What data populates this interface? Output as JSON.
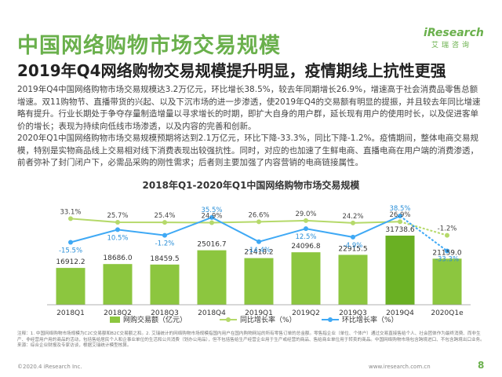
{
  "header": {
    "title": "中国网络购物市场交易规模",
    "subtitle": "2019年Q4网络购物交易规模提升明显，疫情期线上抗性更强",
    "logo_brand": "Research",
    "logo_brand_prefix": "i",
    "logo_cn": "艾瑞咨询"
  },
  "body": {
    "para1": "2019年Q4中国网络购物市场交易规模达3.2万亿元，环比增长38.5%，较去年同期增长26.9%，增速高于社会消费品零售总额增速。双11购物节、直播带货的兴起、以及下沉市场的进一步渗透，使2019年Q4的交易额有明显的提振，并且较去年同比增速略有提升。行业长期处于争夺存量制造增量以寻求增长的时期，即扩大自身的用户群，延长现有用户的使用时长，以及促进客单价的增长；表现为持续向低线市场渗透，以及内容的完善和创新。",
    "para2": "2020年Q1中国网络购物市场交易规模预期将达到2.1万亿元，环比下降-33.3%，同比下降-1.2%。疫情期间，整体电商交易规模，特别是实物商品线上交易相对线下消费表现出较强抗性。同时，对应的也加速了生鲜电商、直播电商在用户端的消费渗透，前者弥补了封门闭户下，必需品采购的刚性需求；后者则主要加强了内容营销的电商链接属性。"
  },
  "chart_data": {
    "type": "bar",
    "title": "2018年Q1-2020年Q1中国网络购物市场交易规模",
    "categories": [
      "2018Q1",
      "2018Q2",
      "2018Q3",
      "2018Q4",
      "2019Q1",
      "2019Q2",
      "2019Q3",
      "2019Q4",
      "2020Q1e"
    ],
    "bar_series": {
      "name": "网购交易额（亿元）",
      "values": [
        16912.2,
        18686.0,
        18459.5,
        25016.7,
        21418.2,
        24096.8,
        22915.5,
        31738.6,
        21159.0
      ],
      "labels": [
        "16912.2",
        "18686.0",
        "18459.5",
        "25016.7",
        "21418.2",
        "24096.8",
        "22915.5",
        "31738.6",
        "21159.0"
      ],
      "color": "#8cc63f",
      "highlight_color": "#6ab023"
    },
    "line_series": [
      {
        "name": "同比增长率（%）",
        "values": [
          33.1,
          25.7,
          25.4,
          24.9,
          26.6,
          29.0,
          24.2,
          26.9,
          -1.2
        ],
        "labels": [
          "33.1%",
          "25.7%",
          "25.4%",
          "24.9%",
          "26.6%",
          "29.0%",
          "24.2%",
          "26.9%",
          "-1.2%"
        ],
        "color": "#b5d96a",
        "label_color": "#444444"
      },
      {
        "name": "环比增长率（%）",
        "values": [
          -15.5,
          10.5,
          -1.2,
          35.5,
          -14.4,
          12.5,
          -4.9,
          38.5,
          -33.3
        ],
        "labels": [
          "-15.5%",
          "10.5%",
          "-1.2%",
          "35.5%",
          "-14.4%",
          "12.5%",
          "-4.9%",
          "38.5%",
          "-33.3%"
        ],
        "color": "#3fa9f5",
        "label_color": "#2a8fd8"
      }
    ],
    "forecast_category_index": 8,
    "legend_placement": "bottom",
    "grid": false
  },
  "notes": {
    "line1": "注释：1. 中国网络购物市场规模为C2C交易额和B2C交易额之和。2. 艾瑞统计的网络购物市场规模指国内用户在国内购物网站的所有零售订单的总金额。零售指企业（单位、个体户）通过交易直接售给个人、社会团体作为最终消费、而非生产、非经营用户用的商品的活动，包括售给居民个人和企事业单位的生活和公共消费（划办公用品），但不包括售给生产经营企业用于生产或经营的商品、售给商业单位用于转卖的商品。中国网络购物市场包含跨境进口、不包含跨境出口业务。",
    "line2": "来源：综合企业财报及专家访谈，根据艾瑞统计模型核算。"
  },
  "footer": {
    "copyright": "©2020.4 iResearch Inc.",
    "website": "www.iresearch.com.cn",
    "page_number": "8"
  }
}
